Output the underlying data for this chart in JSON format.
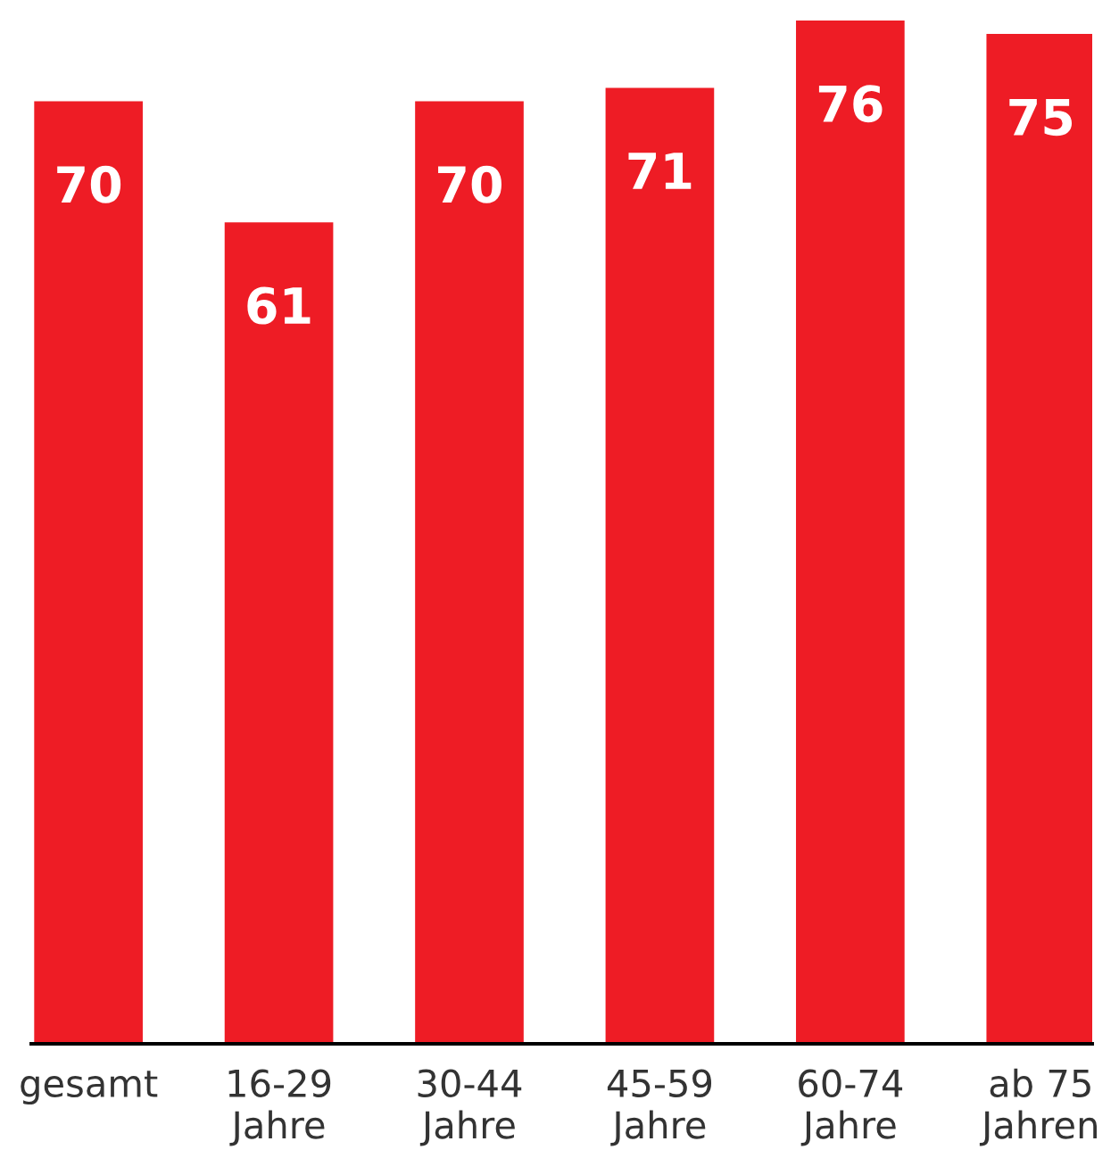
{
  "chart_data": {
    "type": "bar",
    "categories": [
      "gesamt",
      "16-29\nJahre",
      "30-44\nJahre",
      "45-59\nJahre",
      "60-74\nJahre",
      "ab 75\nJahren"
    ],
    "values": [
      70,
      61,
      70,
      71,
      76,
      75
    ],
    "color": "#ee1c25",
    "data_labels": true,
    "tick_labels": "x",
    "grid": false,
    "legend": false
  }
}
